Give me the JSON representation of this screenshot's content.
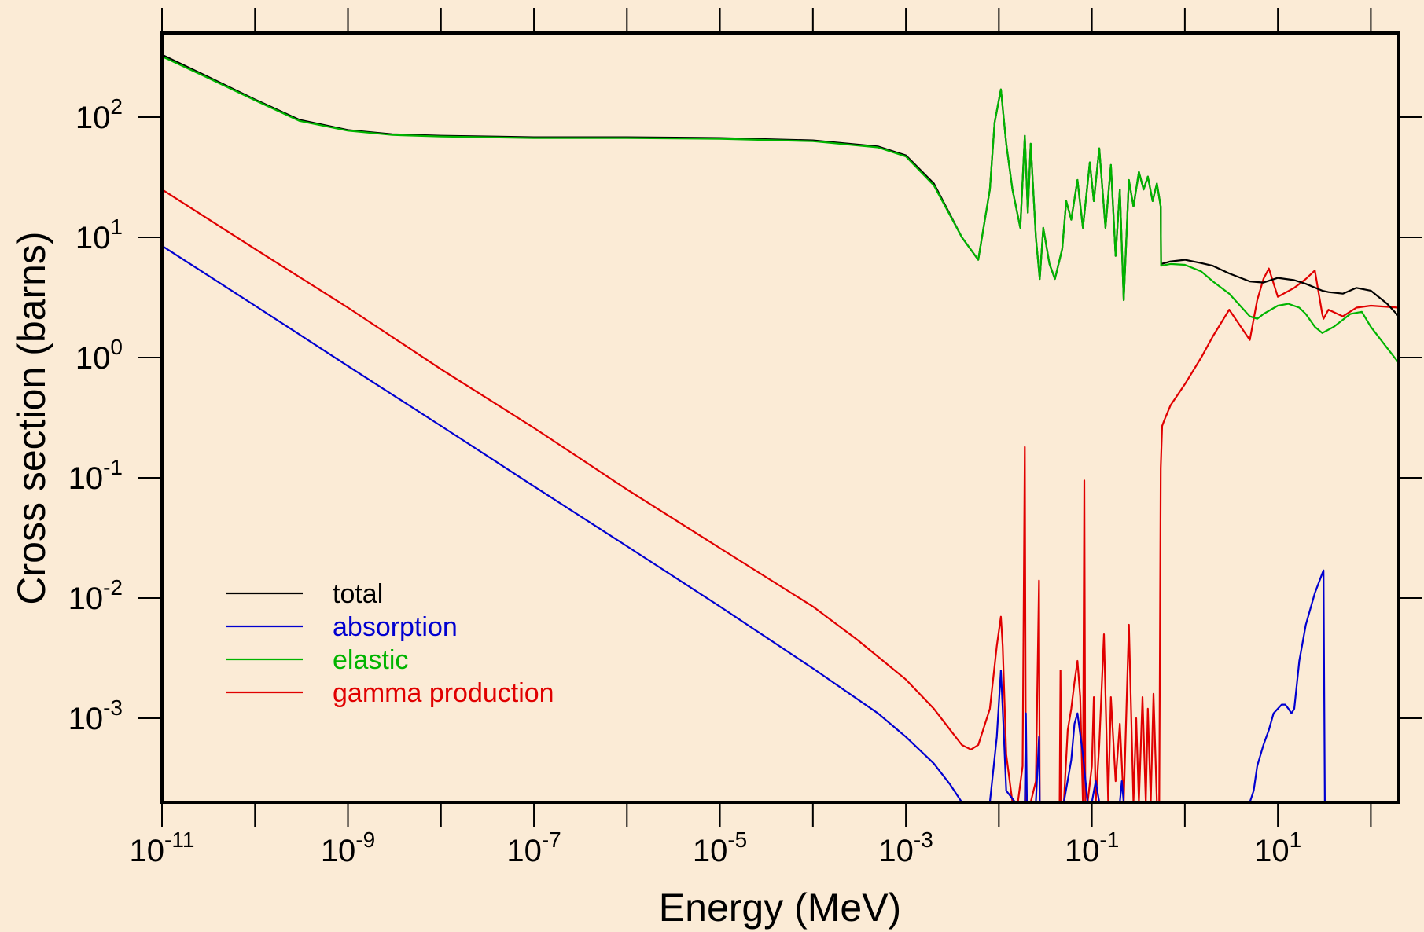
{
  "chart_data": {
    "type": "line",
    "xlabel": "Energy (MeV)",
    "ylabel": "Cross section (barns)",
    "xscale": "log",
    "yscale": "log",
    "xlim": [
      1e-11,
      200
    ],
    "ylim": [
      0.0002,
      500
    ],
    "grid": false,
    "legend_position": "bottom-left",
    "x_tick_labels": [
      {
        "base": "10",
        "exp": "-11",
        "value": 1e-11
      },
      {
        "base": "10",
        "exp": "-9",
        "value": 1e-09
      },
      {
        "base": "10",
        "exp": "-7",
        "value": 1e-07
      },
      {
        "base": "10",
        "exp": "-5",
        "value": 1e-05
      },
      {
        "base": "10",
        "exp": "-3",
        "value": 0.001
      },
      {
        "base": "10",
        "exp": "-1",
        "value": 0.1
      },
      {
        "base": "10",
        "exp": "1",
        "value": 10
      }
    ],
    "y_tick_labels": [
      {
        "base": "10",
        "exp": "2",
        "value": 100
      },
      {
        "base": "10",
        "exp": "1",
        "value": 10
      },
      {
        "base": "10",
        "exp": "0",
        "value": 1
      },
      {
        "base": "10",
        "exp": "-1",
        "value": 0.1
      },
      {
        "base": "10",
        "exp": "-2",
        "value": 0.01
      },
      {
        "base": "10",
        "exp": "-3",
        "value": 0.001
      }
    ],
    "series": [
      {
        "name": "total",
        "color": "#000000",
        "x": [
          1e-11,
          3e-11,
          1e-10,
          3e-10,
          1e-09,
          3e-09,
          1e-08,
          1e-07,
          1e-06,
          1e-05,
          0.0001,
          0.0005,
          0.001,
          0.002,
          0.004,
          0.006,
          0.008,
          0.009,
          0.0105,
          0.012,
          0.014,
          0.017,
          0.019,
          0.0205,
          0.022,
          0.025,
          0.0275,
          0.03,
          0.035,
          0.04,
          0.048,
          0.053,
          0.06,
          0.07,
          0.08,
          0.095,
          0.105,
          0.12,
          0.14,
          0.16,
          0.18,
          0.2,
          0.22,
          0.25,
          0.28,
          0.32,
          0.36,
          0.4,
          0.45,
          0.5,
          0.55,
          0.555,
          0.7,
          1,
          1.5,
          2,
          3,
          5,
          7,
          10,
          15,
          20,
          30,
          35,
          50,
          70,
          100,
          150,
          200
        ],
        "y": [
          330,
          220,
          140,
          95,
          78,
          72,
          70,
          68,
          68,
          67,
          64,
          57,
          48,
          28,
          10,
          6.5,
          25,
          90,
          170,
          60,
          25,
          12,
          70,
          16,
          60,
          10,
          4.5,
          12,
          6,
          4.5,
          8,
          20,
          14,
          30,
          12,
          42,
          20,
          55,
          12,
          40,
          7,
          25,
          3,
          30,
          18,
          35,
          25,
          32,
          20,
          28,
          18,
          6,
          6.3,
          6.5,
          6.1,
          5.8,
          5,
          4.3,
          4.2,
          4.6,
          4.4,
          4.1,
          3.6,
          3.5,
          3.4,
          3.8,
          3.6,
          2.8,
          2.2
        ]
      },
      {
        "name": "absorption",
        "color": "#0000d0",
        "x": [
          1e-11,
          1e-10,
          1e-09,
          1e-08,
          1e-07,
          1e-06,
          1e-05,
          0.0001,
          0.0005,
          0.001,
          0.002,
          0.003,
          0.004,
          0.005,
          0.008,
          0.0095,
          0.0105,
          0.011,
          0.012,
          0.015,
          0.017,
          0.019,
          0.0195,
          0.02,
          0.022,
          0.025,
          0.027,
          0.0275,
          0.03,
          0.04,
          0.05,
          0.06,
          0.065,
          0.07,
          0.08,
          0.09,
          0.1,
          0.11,
          0.12,
          0.15,
          0.2,
          0.21,
          0.22,
          0.25,
          0.5,
          1,
          3,
          5,
          5.5,
          6,
          7,
          8,
          9,
          10,
          11,
          12,
          13,
          14,
          15,
          17,
          20,
          25,
          30,
          31,
          32,
          50,
          100,
          200
        ],
        "y": [
          8.5,
          2.7,
          0.85,
          0.27,
          0.085,
          0.027,
          0.0085,
          0.0026,
          0.0011,
          0.0007,
          0.00042,
          0.00028,
          0.0002,
          0.0002,
          0.0002,
          0.0007,
          0.0025,
          0.0012,
          0.00025,
          0.0002,
          0.0002,
          0.0002,
          0.0011,
          0.0002,
          0.0002,
          0.0002,
          0.0007,
          0.0002,
          0.0002,
          0.0002,
          0.0002,
          0.00045,
          0.0009,
          0.0011,
          0.0005,
          0.0002,
          0.0002,
          0.0003,
          0.0002,
          0.0002,
          0.0002,
          0.0003,
          0.0002,
          0.0002,
          0.0002,
          0.0002,
          0.0002,
          0.0002,
          0.00025,
          0.0004,
          0.0006,
          0.0008,
          0.0011,
          0.0012,
          0.0013,
          0.0013,
          0.0012,
          0.0011,
          0.0012,
          0.003,
          0.006,
          0.011,
          0.016,
          0.017,
          0.0002,
          0.0002,
          0.0002,
          0.0002
        ]
      },
      {
        "name": "elastic",
        "color": "#00b400",
        "x": [
          1e-11,
          3e-11,
          1e-10,
          3e-10,
          1e-09,
          3e-09,
          1e-08,
          1e-07,
          1e-06,
          1e-05,
          0.0001,
          0.0005,
          0.001,
          0.002,
          0.004,
          0.006,
          0.008,
          0.009,
          0.0105,
          0.012,
          0.014,
          0.017,
          0.019,
          0.0205,
          0.022,
          0.025,
          0.0275,
          0.03,
          0.035,
          0.04,
          0.048,
          0.053,
          0.06,
          0.07,
          0.08,
          0.095,
          0.105,
          0.12,
          0.14,
          0.16,
          0.18,
          0.2,
          0.22,
          0.25,
          0.28,
          0.32,
          0.36,
          0.4,
          0.45,
          0.5,
          0.55,
          0.555,
          0.7,
          1,
          1.5,
          2,
          3,
          5,
          6,
          7,
          10,
          13,
          17,
          20,
          25,
          30,
          40,
          60,
          80,
          100,
          150,
          200
        ],
        "y": [
          320,
          215,
          138,
          93,
          77,
          71,
          69,
          67,
          67,
          66,
          63,
          56,
          47,
          27,
          10,
          6.5,
          25,
          90,
          170,
          60,
          25,
          12,
          70,
          16,
          60,
          10,
          4.5,
          12,
          6,
          4.5,
          8,
          20,
          14,
          30,
          12,
          42,
          20,
          55,
          12,
          40,
          7,
          25,
          3,
          30,
          18,
          35,
          25,
          32,
          20,
          28,
          18,
          5.8,
          6,
          5.9,
          5.2,
          4.3,
          3.4,
          2.2,
          2.1,
          2.3,
          2.7,
          2.8,
          2.6,
          2.3,
          1.8,
          1.6,
          1.8,
          2.3,
          2.4,
          1.8,
          1.2,
          0.9
        ]
      },
      {
        "name": "gamma production",
        "color": "#e00000",
        "x": [
          1e-11,
          1e-10,
          1e-09,
          1e-08,
          1e-07,
          1e-06,
          1e-05,
          0.0001,
          0.0003,
          0.001,
          0.002,
          0.003,
          0.004,
          0.005,
          0.006,
          0.008,
          0.0095,
          0.0105,
          0.011,
          0.012,
          0.014,
          0.016,
          0.018,
          0.019,
          0.0195,
          0.02,
          0.022,
          0.025,
          0.027,
          0.0275,
          0.028,
          0.03,
          0.035,
          0.04,
          0.045,
          0.046,
          0.047,
          0.05,
          0.055,
          0.06,
          0.065,
          0.07,
          0.075,
          0.08,
          0.083,
          0.085,
          0.09,
          0.1,
          0.105,
          0.11,
          0.12,
          0.135,
          0.15,
          0.16,
          0.18,
          0.2,
          0.22,
          0.25,
          0.28,
          0.3,
          0.32,
          0.35,
          0.38,
          0.4,
          0.43,
          0.46,
          0.5,
          0.53,
          0.55,
          0.57,
          0.6,
          0.7,
          1,
          1.5,
          2,
          3,
          5,
          6,
          7,
          8,
          10,
          15,
          20,
          25,
          30,
          31,
          35,
          50,
          70,
          100,
          200
        ],
        "y": [
          25,
          8,
          2.6,
          0.8,
          0.26,
          0.08,
          0.026,
          0.0085,
          0.0045,
          0.0021,
          0.0012,
          0.0008,
          0.0006,
          0.00055,
          0.0006,
          0.0012,
          0.004,
          0.007,
          0.004,
          0.0005,
          0.0002,
          0.0002,
          0.0004,
          0.18,
          0.0002,
          0.0002,
          0.0002,
          0.0003,
          0.014,
          0.0002,
          0.0002,
          0.0002,
          0.0002,
          0.0002,
          0.0002,
          0.0025,
          0.0002,
          0.0002,
          0.0008,
          0.0012,
          0.002,
          0.003,
          0.0015,
          0.0002,
          0.095,
          0.0002,
          0.0002,
          0.0004,
          0.0015,
          0.0002,
          0.0006,
          0.005,
          0.0002,
          0.0015,
          0.0003,
          0.0009,
          0.0002,
          0.006,
          0.0002,
          0.001,
          0.0002,
          0.0015,
          0.0002,
          0.0012,
          0.0002,
          0.0016,
          0.0002,
          0.0002,
          0.12,
          0.27,
          0.3,
          0.4,
          0.6,
          1,
          1.5,
          2.5,
          1.4,
          3,
          4.5,
          5.5,
          3.2,
          3.8,
          4.5,
          5.3,
          2.3,
          2.1,
          2.5,
          2.2,
          2.6,
          2.7,
          2.6
        ]
      }
    ]
  }
}
